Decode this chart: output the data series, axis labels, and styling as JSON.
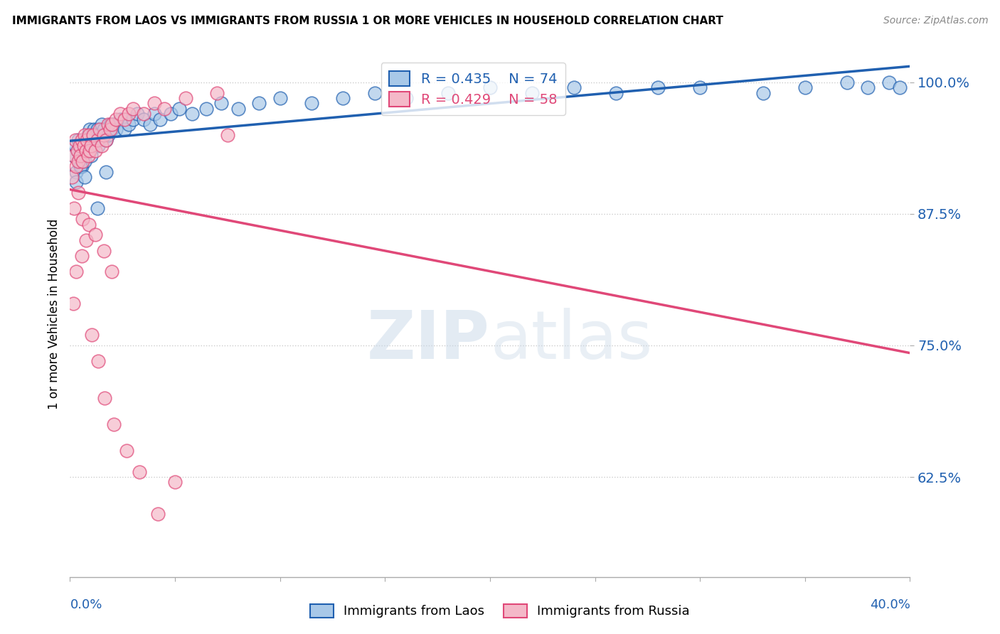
{
  "title": "IMMIGRANTS FROM LAOS VS IMMIGRANTS FROM RUSSIA 1 OR MORE VEHICLES IN HOUSEHOLD CORRELATION CHART",
  "source": "Source: ZipAtlas.com",
  "legend_laos": "Immigrants from Laos",
  "legend_russia": "Immigrants from Russia",
  "R_laos": 0.435,
  "N_laos": 74,
  "R_russia": 0.429,
  "N_russia": 58,
  "color_laos": "#A8C8E8",
  "color_russia": "#F4B8C8",
  "line_color_laos": "#2060B0",
  "line_color_russia": "#E04878",
  "xmin": 0.0,
  "xmax": 40.0,
  "ymin": 53.0,
  "ymax": 103.0,
  "yticks": [
    100.0,
    87.5,
    75.0,
    62.5
  ],
  "background": "#FFFFFF",
  "laos_x": [
    0.15,
    0.25,
    0.3,
    0.35,
    0.4,
    0.45,
    0.5,
    0.55,
    0.6,
    0.65,
    0.7,
    0.75,
    0.8,
    0.85,
    0.9,
    0.95,
    1.0,
    1.05,
    1.1,
    1.15,
    1.2,
    1.25,
    1.3,
    1.35,
    1.4,
    1.5,
    1.55,
    1.6,
    1.7,
    1.8,
    1.9,
    2.0,
    2.1,
    2.2,
    2.4,
    2.6,
    2.8,
    3.0,
    3.2,
    3.5,
    3.8,
    4.0,
    4.3,
    4.8,
    5.2,
    5.8,
    6.5,
    7.2,
    8.0,
    9.0,
    10.0,
    11.5,
    13.0,
    14.5,
    16.0,
    18.0,
    20.0,
    22.0,
    24.0,
    26.0,
    28.0,
    30.0,
    33.0,
    35.0,
    37.0,
    38.0,
    39.0,
    39.5,
    0.3,
    0.5,
    0.7,
    1.0,
    1.3,
    1.7
  ],
  "laos_y": [
    93.0,
    94.0,
    91.5,
    93.5,
    94.5,
    92.5,
    93.5,
    92.0,
    93.0,
    94.0,
    92.5,
    94.5,
    93.5,
    95.0,
    94.0,
    95.5,
    94.5,
    95.0,
    94.0,
    95.5,
    94.5,
    95.0,
    95.5,
    94.0,
    95.0,
    96.0,
    95.0,
    95.5,
    94.5,
    95.0,
    96.0,
    95.5,
    96.0,
    95.5,
    96.5,
    95.5,
    96.0,
    96.5,
    97.0,
    96.5,
    96.0,
    97.0,
    96.5,
    97.0,
    97.5,
    97.0,
    97.5,
    98.0,
    97.5,
    98.0,
    98.5,
    98.0,
    98.5,
    99.0,
    98.5,
    99.0,
    99.5,
    99.0,
    99.5,
    99.0,
    99.5,
    99.5,
    99.0,
    99.5,
    100.0,
    99.5,
    100.0,
    99.5,
    90.5,
    92.0,
    91.0,
    93.0,
    88.0,
    91.5
  ],
  "russia_x": [
    0.1,
    0.2,
    0.25,
    0.3,
    0.35,
    0.4,
    0.45,
    0.5,
    0.55,
    0.6,
    0.65,
    0.7,
    0.75,
    0.8,
    0.85,
    0.9,
    0.95,
    1.0,
    1.1,
    1.2,
    1.3,
    1.4,
    1.5,
    1.6,
    1.7,
    1.8,
    1.9,
    2.0,
    2.2,
    2.4,
    2.6,
    2.8,
    3.0,
    3.5,
    4.0,
    4.5,
    5.5,
    7.0,
    0.15,
    0.3,
    0.55,
    0.75,
    1.05,
    1.35,
    1.65,
    2.1,
    2.7,
    3.3,
    4.2,
    5.0,
    0.2,
    0.4,
    0.6,
    0.9,
    1.2,
    1.6,
    2.0,
    7.5
  ],
  "russia_y": [
    91.0,
    93.0,
    94.5,
    92.0,
    93.5,
    92.5,
    94.0,
    93.0,
    94.5,
    92.5,
    94.0,
    95.0,
    93.5,
    94.5,
    93.0,
    95.0,
    93.5,
    94.0,
    95.0,
    93.5,
    94.5,
    95.5,
    94.0,
    95.0,
    94.5,
    96.0,
    95.5,
    96.0,
    96.5,
    97.0,
    96.5,
    97.0,
    97.5,
    97.0,
    98.0,
    97.5,
    98.5,
    99.0,
    79.0,
    82.0,
    83.5,
    85.0,
    76.0,
    73.5,
    70.0,
    67.5,
    65.0,
    63.0,
    59.0,
    62.0,
    88.0,
    89.5,
    87.0,
    86.5,
    85.5,
    84.0,
    82.0,
    95.0
  ]
}
